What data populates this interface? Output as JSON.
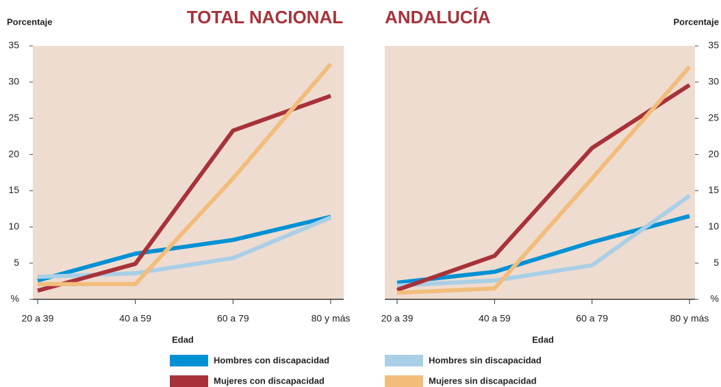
{
  "legend": [
    {
      "name": "Hombres con discapacidad",
      "color": "#0091d5"
    },
    {
      "name": "Mujeres con discapacidad",
      "color": "#a8323a"
    },
    {
      "name": "Hombres sin discapacidad",
      "color": "#a9cfe6"
    },
    {
      "name": "Mujeres sin discapacidad",
      "color": "#f2bd7b"
    }
  ],
  "chart_data": [
    {
      "type": "line",
      "title": "TOTAL NACIONAL",
      "ylabel": "Porcentaje",
      "xlabel": "Edad",
      "axis_side": "left",
      "categories": [
        "20 a 39",
        "40 a 59",
        "60 a 79",
        "80 y más"
      ],
      "series": [
        {
          "values": [
            2.6,
            6.3,
            8.2,
            11.4
          ]
        },
        {
          "values": [
            1.2,
            4.9,
            23.3,
            28.1
          ]
        },
        {
          "values": [
            3.1,
            3.6,
            5.7,
            11.3
          ]
        },
        {
          "values": [
            2.1,
            2.1,
            16.7,
            32.5
          ]
        }
      ],
      "ylim": [
        0,
        35
      ],
      "yticks": [
        {
          "value": 0,
          "label": "%"
        },
        5,
        10,
        15,
        20,
        25,
        30,
        35
      ]
    },
    {
      "type": "line",
      "title": "ANDALUCÍA",
      "ylabel": "Porcentaje",
      "xlabel": "Edad",
      "axis_side": "right",
      "categories": [
        "20 a 39",
        "40 a 59",
        "60 a 79",
        "80 y más"
      ],
      "series": [
        {
          "values": [
            2.3,
            3.8,
            7.9,
            11.5
          ]
        },
        {
          "values": [
            1.3,
            6.0,
            20.9,
            29.6
          ]
        },
        {
          "values": [
            1.9,
            2.6,
            4.7,
            14.3
          ]
        },
        {
          "values": [
            0.9,
            1.5,
            16.7,
            32.1
          ]
        }
      ],
      "ylim": [
        0,
        35
      ],
      "yticks": [
        {
          "value": 0,
          "label": "%"
        },
        5,
        10,
        15,
        20,
        25,
        30,
        35
      ]
    }
  ]
}
